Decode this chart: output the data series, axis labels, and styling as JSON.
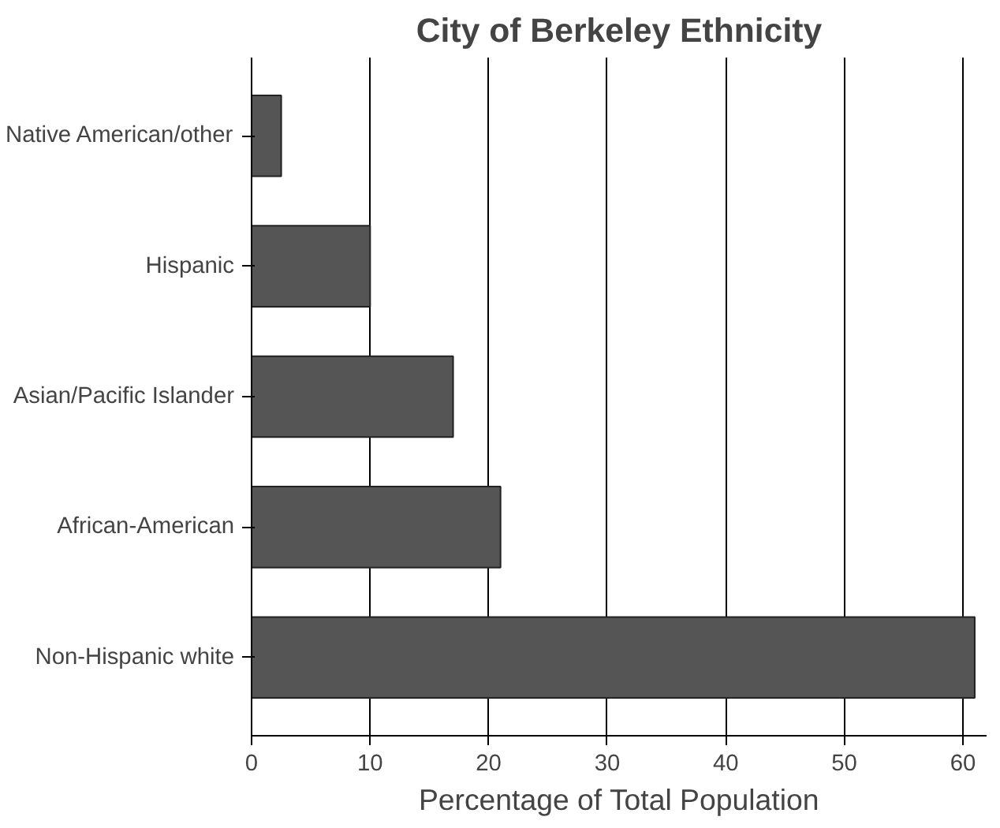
{
  "chart_data": {
    "type": "bar",
    "orientation": "horizontal",
    "title": "City of Berkeley Ethnicity",
    "xlabel": "Percentage of Total Population",
    "categories": [
      "Native American/other",
      "Hispanic",
      "Asian/Pacific Islander",
      "African-American",
      "Non-Hispanic white"
    ],
    "values": [
      2.5,
      10,
      17,
      21,
      61
    ],
    "color": "#555555",
    "xlim": [
      0,
      62
    ],
    "xticks": [
      0,
      10,
      20,
      30,
      40,
      50,
      60
    ],
    "grid": "x"
  }
}
